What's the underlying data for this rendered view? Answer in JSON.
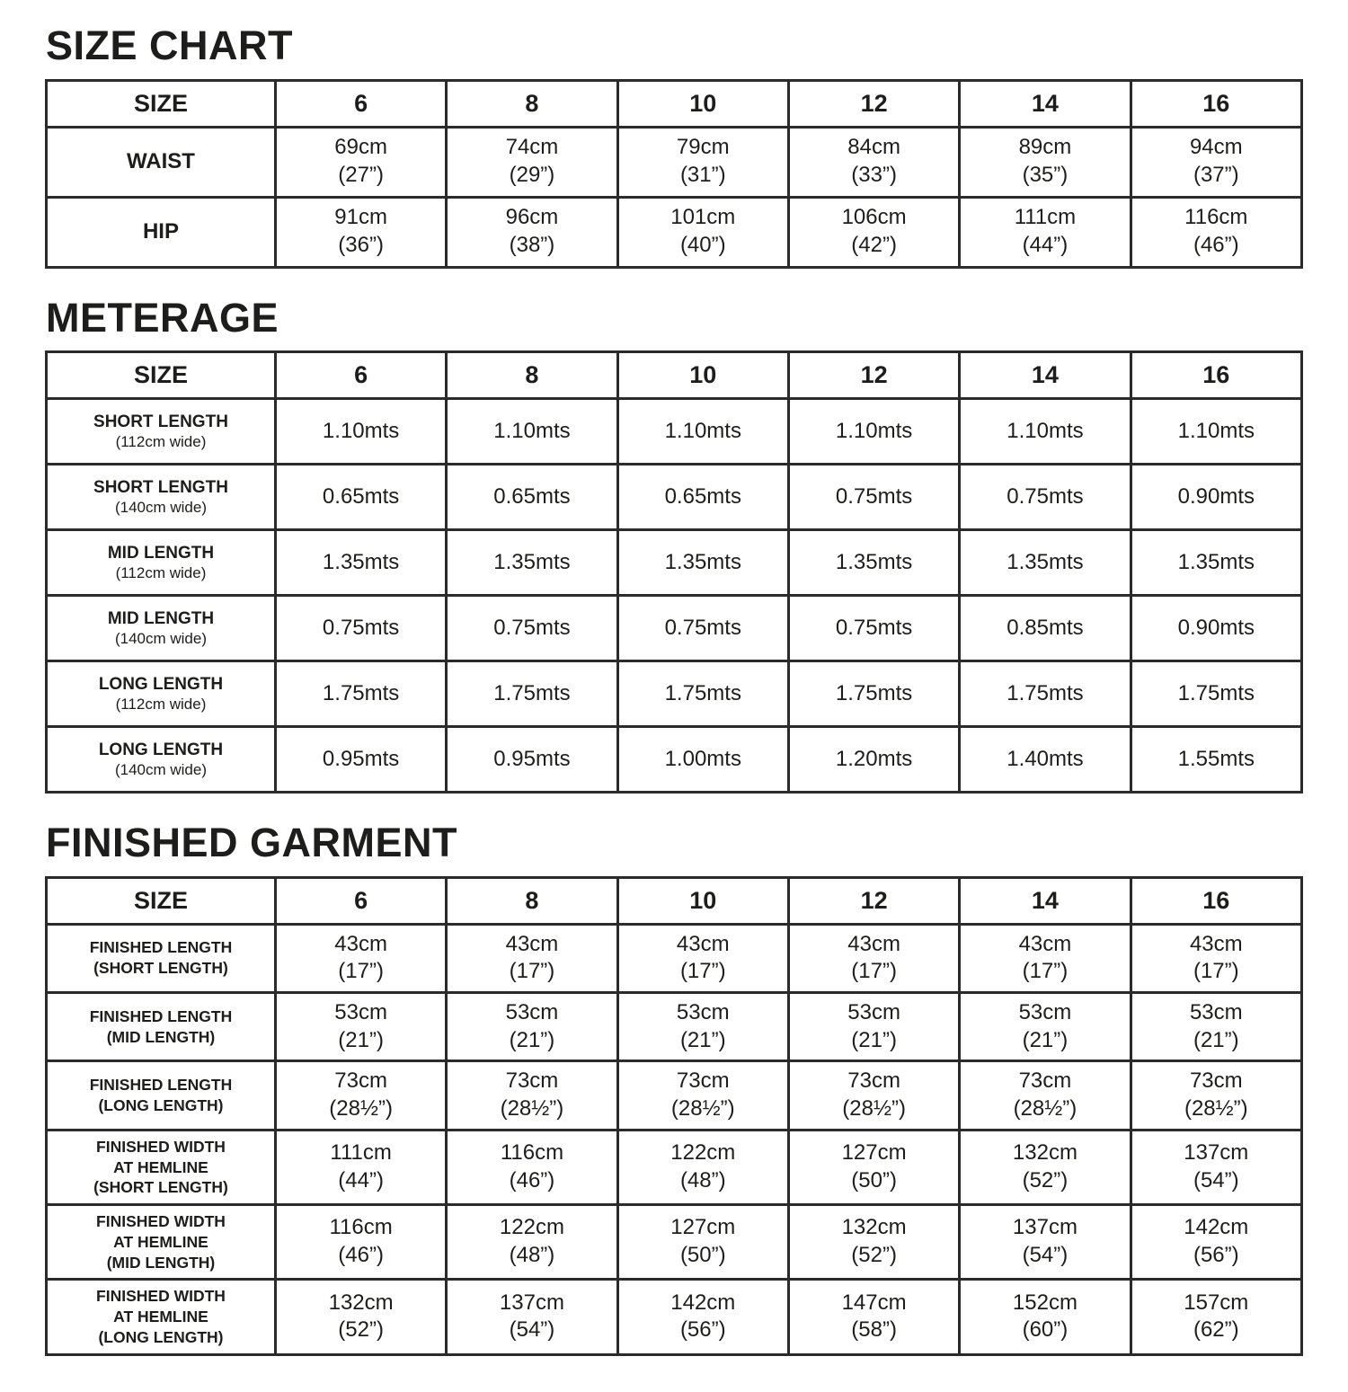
{
  "page": {
    "background_color": "#ffffff",
    "text_color": "#1d1d1b",
    "border_color": "#2b2b2b"
  },
  "sections": [
    {
      "id": "size-chart",
      "title": "SIZE CHART",
      "header": [
        "SIZE",
        "6",
        "8",
        "10",
        "12",
        "14",
        "16"
      ],
      "rows": [
        {
          "label": "WAIST",
          "sublabel": "",
          "cells": [
            "69cm\n(27”)",
            "74cm\n(29”)",
            "79cm\n(31”)",
            "84cm\n(33”)",
            "89cm\n(35”)",
            "94cm\n(37”)"
          ]
        },
        {
          "label": "HIP",
          "sublabel": "",
          "cells": [
            "91cm\n(36”)",
            "96cm\n(38”)",
            "101cm\n(40”)",
            "106cm\n(42”)",
            "111cm\n(44”)",
            "116cm\n(46”)"
          ]
        }
      ]
    },
    {
      "id": "meterage",
      "title": "METERAGE",
      "header": [
        "SIZE",
        "6",
        "8",
        "10",
        "12",
        "14",
        "16"
      ],
      "rows": [
        {
          "label": "SHORT LENGTH",
          "sublabel": "(112cm wide)",
          "cells": [
            "1.10mts",
            "1.10mts",
            "1.10mts",
            "1.10mts",
            "1.10mts",
            "1.10mts"
          ]
        },
        {
          "label": "SHORT LENGTH",
          "sublabel": "(140cm wide)",
          "cells": [
            "0.65mts",
            "0.65mts",
            "0.65mts",
            "0.75mts",
            "0.75mts",
            "0.90mts"
          ]
        },
        {
          "label": "MID LENGTH",
          "sublabel": "(112cm wide)",
          "cells": [
            "1.35mts",
            "1.35mts",
            "1.35mts",
            "1.35mts",
            "1.35mts",
            "1.35mts"
          ]
        },
        {
          "label": "MID LENGTH",
          "sublabel": "(140cm wide)",
          "cells": [
            "0.75mts",
            "0.75mts",
            "0.75mts",
            "0.75mts",
            "0.85mts",
            "0.90mts"
          ]
        },
        {
          "label": "LONG LENGTH",
          "sublabel": "(112cm wide)",
          "cells": [
            "1.75mts",
            "1.75mts",
            "1.75mts",
            "1.75mts",
            "1.75mts",
            "1.75mts"
          ]
        },
        {
          "label": "LONG LENGTH",
          "sublabel": "(140cm wide)",
          "cells": [
            "0.95mts",
            "0.95mts",
            "1.00mts",
            "1.20mts",
            "1.40mts",
            "1.55mts"
          ]
        }
      ]
    },
    {
      "id": "finished-garment",
      "title": "FINISHED GARMENT",
      "header": [
        "SIZE",
        "6",
        "8",
        "10",
        "12",
        "14",
        "16"
      ],
      "rows": [
        {
          "label": "FINISHED LENGTH\n(SHORT LENGTH)",
          "sublabel": "",
          "cells": [
            "43cm\n(17”)",
            "43cm\n(17”)",
            "43cm\n(17”)",
            "43cm\n(17”)",
            "43cm\n(17”)",
            "43cm\n(17”)"
          ]
        },
        {
          "label": "FINISHED LENGTH\n(MID LENGTH)",
          "sublabel": "",
          "cells": [
            "53cm\n(21”)",
            "53cm\n(21”)",
            "53cm\n(21”)",
            "53cm\n(21”)",
            "53cm\n(21”)",
            "53cm\n(21”)"
          ]
        },
        {
          "label": "FINISHED LENGTH\n(LONG LENGTH)",
          "sublabel": "",
          "cells": [
            "73cm\n(28½”)",
            "73cm\n(28½”)",
            "73cm\n(28½”)",
            "73cm\n(28½”)",
            "73cm\n(28½”)",
            "73cm\n(28½”)"
          ]
        },
        {
          "label": "FINISHED WIDTH\nAT HEMLINE\n(SHORT LENGTH)",
          "sublabel": "",
          "cells": [
            "111cm\n(44”)",
            "116cm\n(46”)",
            "122cm\n(48”)",
            "127cm\n(50”)",
            "132cm\n(52”)",
            "137cm\n(54”)"
          ]
        },
        {
          "label": "FINISHED WIDTH\nAT HEMLINE\n(MID LENGTH)",
          "sublabel": "",
          "cells": [
            "116cm\n(46”)",
            "122cm\n(48”)",
            "127cm\n(50”)",
            "132cm\n(52”)",
            "137cm\n(54”)",
            "142cm\n(56”)"
          ]
        },
        {
          "label": "FINISHED WIDTH\nAT HEMLINE\n(LONG LENGTH)",
          "sublabel": "",
          "cells": [
            "132cm\n(52”)",
            "137cm\n(54”)",
            "142cm\n(56”)",
            "147cm\n(58”)",
            "152cm\n(60”)",
            "157cm\n(62”)"
          ]
        }
      ]
    }
  ]
}
